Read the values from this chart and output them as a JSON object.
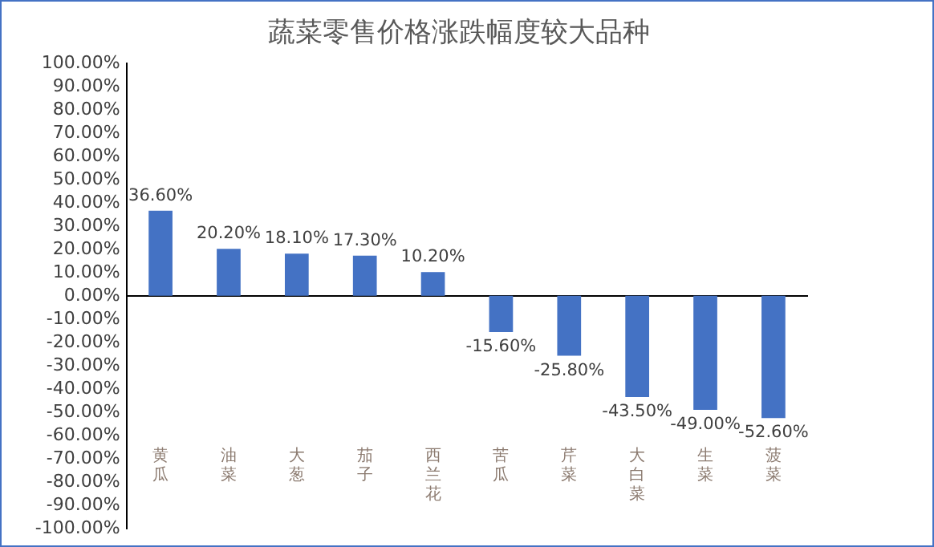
{
  "chart_data": {
    "type": "bar",
    "title": "蔬菜零售价格涨跌幅度较大品种",
    "categories": [
      "黄瓜",
      "油菜",
      "大葱",
      "茄子",
      "西兰花",
      "苦瓜",
      "芹菜",
      "大白菜",
      "生菜",
      "菠菜"
    ],
    "values": [
      36.6,
      20.2,
      18.1,
      17.3,
      10.2,
      -15.6,
      -25.8,
      -43.5,
      -49.0,
      -52.6
    ],
    "value_labels": [
      "36.60%",
      "20.20%",
      "18.10%",
      "17.30%",
      "10.20%",
      "-15.60%",
      "-25.80%",
      "-43.50%",
      "-49.00%",
      "-52.60%"
    ],
    "color": "#4472c4",
    "ylim": [
      -100,
      100
    ],
    "yticks": [
      {
        "value": 100,
        "label": "100.00%"
      },
      {
        "value": 90,
        "label": "90.00%"
      },
      {
        "value": 80,
        "label": "80.00%"
      },
      {
        "value": 70,
        "label": "70.00%"
      },
      {
        "value": 60,
        "label": "60.00%"
      },
      {
        "value": 50,
        "label": "50.00%"
      },
      {
        "value": 40,
        "label": "40.00%"
      },
      {
        "value": 30,
        "label": "30.00%"
      },
      {
        "value": 20,
        "label": "20.00%"
      },
      {
        "value": 10,
        "label": "10.00%"
      },
      {
        "value": 0,
        "label": "0.00%"
      },
      {
        "value": -10,
        "label": "-10.00%"
      },
      {
        "value": -20,
        "label": "-20.00%"
      },
      {
        "value": -30,
        "label": "-30.00%"
      },
      {
        "value": -40,
        "label": "-40.00%"
      },
      {
        "value": -50,
        "label": "-50.00%"
      },
      {
        "value": -60,
        "label": "-60.00%"
      },
      {
        "value": -70,
        "label": "-70.00%"
      },
      {
        "value": -80,
        "label": "-80.00%"
      },
      {
        "value": -90,
        "label": "-90.00%"
      },
      {
        "value": -100,
        "label": "-100.00%"
      }
    ]
  }
}
